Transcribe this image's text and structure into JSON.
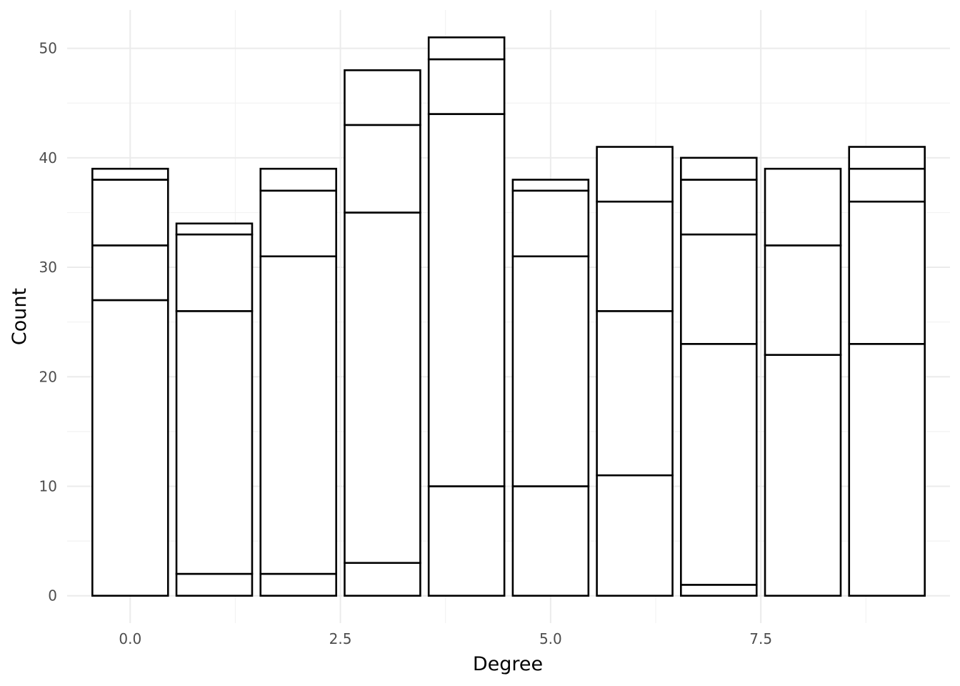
{
  "chart_data": {
    "type": "bar",
    "stacked": true,
    "title": "",
    "xlabel": "Degree",
    "ylabel": "Count",
    "x": [
      0,
      1,
      2,
      3,
      4,
      5,
      6,
      7,
      8,
      9
    ],
    "xlim": [
      -0.75,
      9.75
    ],
    "ylim": [
      -2.5,
      53.5
    ],
    "x_ticks": [
      0.0,
      2.5,
      5.0,
      7.5
    ],
    "x_tick_labels": [
      "0.0",
      "2.5",
      "5.0",
      "7.5"
    ],
    "y_ticks": [
      0,
      10,
      20,
      30,
      40,
      50
    ],
    "y_tick_labels": [
      "0",
      "10",
      "20",
      "30",
      "40",
      "50"
    ],
    "stack_boundaries": [
      [
        27,
        32,
        38,
        39
      ],
      [
        2,
        26,
        33,
        34
      ],
      [
        2,
        31,
        37,
        39
      ],
      [
        3,
        35,
        43,
        48
      ],
      [
        10,
        44,
        49,
        51
      ],
      [
        10,
        31,
        37,
        38
      ],
      [
        11,
        26,
        36,
        41
      ],
      [
        1,
        23,
        33,
        38,
        40
      ],
      [
        22,
        32,
        39
      ],
      [
        23,
        36,
        39,
        41
      ]
    ],
    "totals": [
      39,
      34,
      39,
      48,
      51,
      38,
      41,
      40,
      39,
      41
    ],
    "fill_color": "#ffffff",
    "outline_color": "#000000",
    "grid": true,
    "legend": "none"
  }
}
